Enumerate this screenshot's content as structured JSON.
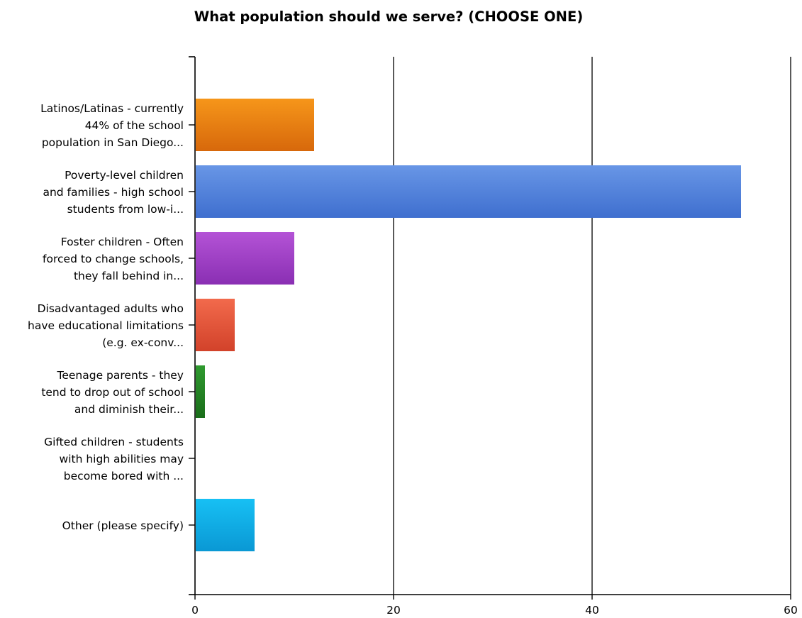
{
  "chart_data": {
    "type": "bar",
    "orientation": "horizontal",
    "title": "What population should we serve? (CHOOSE ONE)",
    "xlabel": "",
    "ylabel": "",
    "xlim": [
      0,
      60
    ],
    "ticks": [
      0,
      20,
      40,
      60
    ],
    "grid": "vertical lines at each x tick",
    "legend": "none",
    "categories": [
      {
        "label_lines": [
          "Latinos/Latinas - currently",
          "44% of the school",
          "population in San Diego..."
        ],
        "value": 12,
        "color_top": "#f6961a",
        "color_bottom": "#d7680b"
      },
      {
        "label_lines": [
          "Poverty-level children",
          "and families - high  school",
          "students from low-i..."
        ],
        "value": 55,
        "color_top": "#6896e6",
        "color_bottom": "#3f6fcf"
      },
      {
        "label_lines": [
          "Foster children - Often",
          "forced to change schools,",
          "they fall behind in..."
        ],
        "value": 10,
        "color_top": "#b453d6",
        "color_bottom": "#8a2fb3"
      },
      {
        "label_lines": [
          "Disadvantaged adults who",
          "have educational limitations",
          "(e.g. ex-conv..."
        ],
        "value": 4,
        "color_top": "#f26a4c",
        "color_bottom": "#d2422a"
      },
      {
        "label_lines": [
          "Teenage parents  - they",
          "tend to drop out of school",
          "and diminish their..."
        ],
        "value": 1,
        "color_top": "#2f9a2f",
        "color_bottom": "#1a6d1a"
      },
      {
        "label_lines": [
          "Gifted children - students",
          "with high abilities may",
          "become bored with ..."
        ],
        "value": 0,
        "color_top": "#888888",
        "color_bottom": "#666666"
      },
      {
        "label_lines": [
          "Other (please specify)"
        ],
        "value": 6,
        "color_top": "#17c0f4",
        "color_bottom": "#0a98d4"
      }
    ]
  }
}
